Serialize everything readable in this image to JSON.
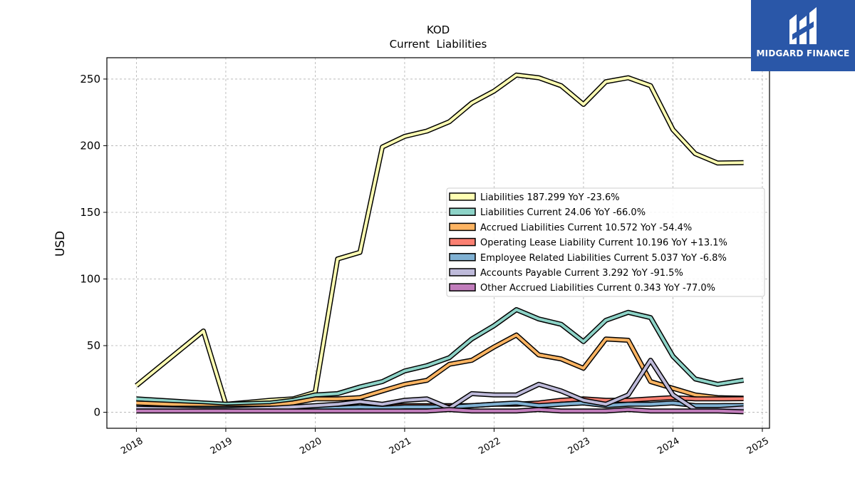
{
  "brand": {
    "name": "MIDGARD FINANCE",
    "bg_color": "#2a57a8"
  },
  "chart_data": {
    "type": "line",
    "title": "KOD",
    "subtitle": "Current  Liabilities",
    "xlabel": "",
    "ylabel": "USD",
    "xlim": [
      2017.67,
      2025.08
    ],
    "ylim": [
      -12,
      266
    ],
    "x_ticks": [
      "2018",
      "2019",
      "2020",
      "2021",
      "2022",
      "2023",
      "2024",
      "2025"
    ],
    "y_ticks": [
      0,
      50,
      100,
      150,
      200,
      250
    ],
    "grid": true,
    "legend_position": "center-right",
    "series": [
      {
        "name": "Liabilities",
        "legend": "Liabilities  187.299 YoY -23.6%",
        "color": "#ffffb3",
        "points": [
          [
            2018.0,
            20
          ],
          [
            2018.75,
            61
          ],
          [
            2019.0,
            6
          ],
          [
            2019.5,
            9
          ],
          [
            2019.75,
            10
          ],
          [
            2020.0,
            15
          ],
          [
            2020.25,
            115
          ],
          [
            2020.5,
            120
          ],
          [
            2020.75,
            199
          ],
          [
            2021.0,
            207
          ],
          [
            2021.25,
            211
          ],
          [
            2021.5,
            218
          ],
          [
            2021.75,
            232
          ],
          [
            2022.0,
            241
          ],
          [
            2022.25,
            253
          ],
          [
            2022.5,
            251
          ],
          [
            2022.75,
            245
          ],
          [
            2023.0,
            231
          ],
          [
            2023.25,
            248
          ],
          [
            2023.5,
            251
          ],
          [
            2023.75,
            245
          ],
          [
            2024.0,
            212
          ],
          [
            2024.25,
            194
          ],
          [
            2024.5,
            187
          ],
          [
            2024.79,
            187.299
          ]
        ]
      },
      {
        "name": "Liabilities Current",
        "legend": "Liabilities Current  24.06 YoY -66.0%",
        "color": "#8dd3c7",
        "points": [
          [
            2018.0,
            10
          ],
          [
            2018.75,
            7
          ],
          [
            2019.0,
            6
          ],
          [
            2019.5,
            7
          ],
          [
            2019.75,
            9
          ],
          [
            2020.0,
            13
          ],
          [
            2020.25,
            14
          ],
          [
            2020.5,
            19
          ],
          [
            2020.75,
            23
          ],
          [
            2021.0,
            31
          ],
          [
            2021.25,
            35
          ],
          [
            2021.5,
            41
          ],
          [
            2021.75,
            55
          ],
          [
            2022.0,
            65
          ],
          [
            2022.25,
            77
          ],
          [
            2022.5,
            70
          ],
          [
            2022.75,
            66
          ],
          [
            2023.0,
            53
          ],
          [
            2023.25,
            69
          ],
          [
            2023.5,
            75
          ],
          [
            2023.75,
            71
          ],
          [
            2024.0,
            42
          ],
          [
            2024.25,
            25
          ],
          [
            2024.5,
            21
          ],
          [
            2024.79,
            24.06
          ]
        ]
      },
      {
        "name": "Accrued Liabilities Current",
        "legend": "Accrued Liabilities Current  10.572 YoY -54.4%",
        "color": "#fdb462",
        "points": [
          [
            2018.0,
            7
          ],
          [
            2018.75,
            5
          ],
          [
            2019.0,
            4
          ],
          [
            2019.5,
            5
          ],
          [
            2019.75,
            7
          ],
          [
            2020.0,
            10
          ],
          [
            2020.25,
            10
          ],
          [
            2020.5,
            11
          ],
          [
            2020.75,
            16
          ],
          [
            2021.0,
            21
          ],
          [
            2021.25,
            24
          ],
          [
            2021.5,
            36
          ],
          [
            2021.75,
            39
          ],
          [
            2022.0,
            49
          ],
          [
            2022.25,
            58
          ],
          [
            2022.5,
            43
          ],
          [
            2022.75,
            40
          ],
          [
            2023.0,
            33
          ],
          [
            2023.25,
            55
          ],
          [
            2023.5,
            54
          ],
          [
            2023.75,
            23
          ],
          [
            2024.0,
            18
          ],
          [
            2024.25,
            13
          ],
          [
            2024.5,
            11
          ],
          [
            2024.79,
            10.572
          ]
        ]
      },
      {
        "name": "Operating Lease Liability Current",
        "legend": "Operating Lease Liability Current  10.196 YoY +13.1%",
        "color": "#fb8072",
        "points": [
          [
            2019.0,
            3
          ],
          [
            2019.5,
            3
          ],
          [
            2019.75,
            3
          ],
          [
            2020.0,
            4
          ],
          [
            2020.25,
            4
          ],
          [
            2020.5,
            4
          ],
          [
            2020.75,
            4
          ],
          [
            2021.0,
            5
          ],
          [
            2021.25,
            5
          ],
          [
            2021.5,
            5
          ],
          [
            2021.75,
            5
          ],
          [
            2022.0,
            6
          ],
          [
            2022.25,
            6
          ],
          [
            2022.5,
            7
          ],
          [
            2022.75,
            9
          ],
          [
            2023.0,
            10
          ],
          [
            2023.25,
            9
          ],
          [
            2023.5,
            9
          ],
          [
            2023.75,
            10
          ],
          [
            2024.0,
            11
          ],
          [
            2024.25,
            10
          ],
          [
            2024.5,
            10
          ],
          [
            2024.79,
            10.196
          ]
        ]
      },
      {
        "name": "Employee Related Liabilities Current",
        "legend": "Employee Related Liabilities Current  5.037 YoY -6.8%",
        "color": "#80b1d3",
        "points": [
          [
            2018.0,
            3
          ],
          [
            2018.75,
            3
          ],
          [
            2019.0,
            3
          ],
          [
            2019.5,
            3
          ],
          [
            2019.75,
            3
          ],
          [
            2020.0,
            3
          ],
          [
            2020.25,
            3
          ],
          [
            2020.5,
            4
          ],
          [
            2020.75,
            3
          ],
          [
            2021.0,
            4
          ],
          [
            2021.25,
            4
          ],
          [
            2021.5,
            4
          ],
          [
            2021.75,
            5
          ],
          [
            2022.0,
            6
          ],
          [
            2022.25,
            7
          ],
          [
            2022.5,
            5
          ],
          [
            2022.75,
            6
          ],
          [
            2023.0,
            7
          ],
          [
            2023.25,
            5
          ],
          [
            2023.5,
            6
          ],
          [
            2023.75,
            6
          ],
          [
            2024.0,
            7
          ],
          [
            2024.25,
            5
          ],
          [
            2024.5,
            5
          ],
          [
            2024.79,
            5.037
          ]
        ]
      },
      {
        "name": "Accounts Payable Current",
        "legend": "Accounts Payable Current  3.292 YoY -91.5%",
        "color": "#bebada",
        "points": [
          [
            2018.0,
            3
          ],
          [
            2018.75,
            2
          ],
          [
            2019.0,
            2
          ],
          [
            2019.5,
            3
          ],
          [
            2019.75,
            4
          ],
          [
            2020.0,
            5
          ],
          [
            2020.25,
            6
          ],
          [
            2020.5,
            8
          ],
          [
            2020.75,
            6
          ],
          [
            2021.0,
            9
          ],
          [
            2021.25,
            10
          ],
          [
            2021.5,
            3
          ],
          [
            2021.75,
            14
          ],
          [
            2022.0,
            13
          ],
          [
            2022.25,
            13
          ],
          [
            2022.5,
            21
          ],
          [
            2022.75,
            16
          ],
          [
            2023.0,
            9
          ],
          [
            2023.25,
            6
          ],
          [
            2023.5,
            13
          ],
          [
            2023.75,
            39
          ],
          [
            2024.0,
            13
          ],
          [
            2024.25,
            2
          ],
          [
            2024.5,
            2
          ],
          [
            2024.79,
            3.292
          ]
        ]
      },
      {
        "name": "Other Accrued Liabilities Current",
        "legend": "Other Accrued Liabilities Current  0.343 YoY -77.0%",
        "color": "#c17dbc",
        "points": [
          [
            2018.0,
            1
          ],
          [
            2018.75,
            1
          ],
          [
            2019.0,
            1
          ],
          [
            2019.5,
            1
          ],
          [
            2019.75,
            1
          ],
          [
            2020.0,
            1
          ],
          [
            2020.25,
            1
          ],
          [
            2020.5,
            1
          ],
          [
            2020.75,
            1
          ],
          [
            2021.0,
            1
          ],
          [
            2021.25,
            1
          ],
          [
            2021.5,
            2
          ],
          [
            2021.75,
            1
          ],
          [
            2022.0,
            1
          ],
          [
            2022.25,
            1
          ],
          [
            2022.5,
            2
          ],
          [
            2022.75,
            1
          ],
          [
            2023.0,
            1
          ],
          [
            2023.25,
            1
          ],
          [
            2023.5,
            2
          ],
          [
            2023.75,
            1
          ],
          [
            2024.0,
            1
          ],
          [
            2024.25,
            1
          ],
          [
            2024.5,
            1
          ],
          [
            2024.79,
            0.343
          ]
        ]
      }
    ]
  }
}
